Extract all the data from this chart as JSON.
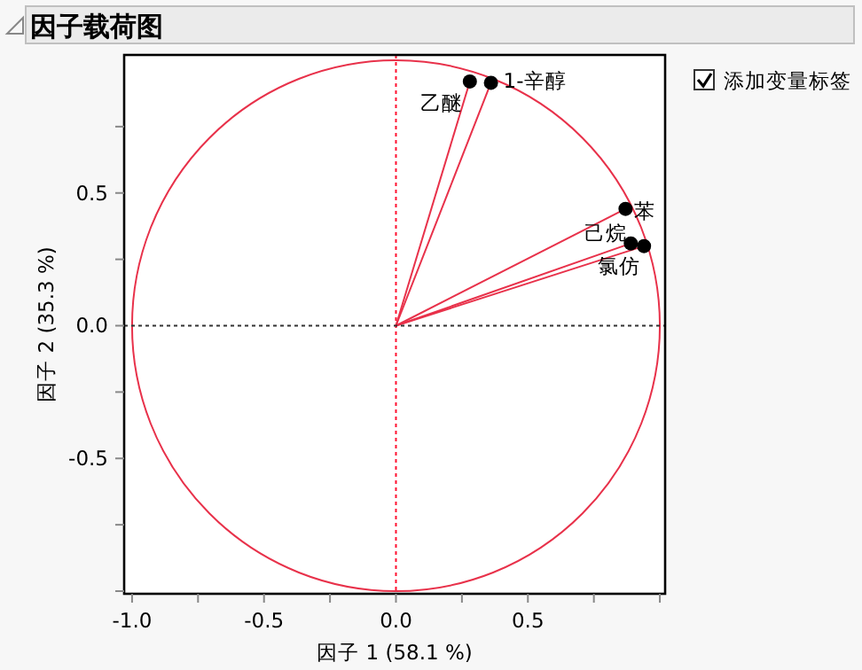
{
  "chart_data": {
    "type": "scatter",
    "title": "因子载荷图",
    "xlabel": "因子 1  (58.1 %)",
    "ylabel": "因子 2  (35.3 %)",
    "xlim": [
      -1.03,
      1.02
    ],
    "ylim": [
      -1.01,
      1.02
    ],
    "xticks": [
      {
        "value": -1,
        "label": "-1.0"
      },
      {
        "value": -0.75,
        "label": null
      },
      {
        "value": -0.5,
        "label": "-0.5"
      },
      {
        "value": -0.25,
        "label": null
      },
      {
        "value": 0,
        "label": "0.0"
      },
      {
        "value": 0.25,
        "label": null
      },
      {
        "value": 0.5,
        "label": "0.5"
      },
      {
        "value": 0.75,
        "label": null
      },
      {
        "value": 1,
        "label": null
      }
    ],
    "yticks": [
      {
        "value": -1,
        "label": null
      },
      {
        "value": -0.75,
        "label": null
      },
      {
        "value": -0.5,
        "label": "-0.5"
      },
      {
        "value": -0.25,
        "label": null
      },
      {
        "value": 0,
        "label": "0.0"
      },
      {
        "value": 0.25,
        "label": null
      },
      {
        "value": 0.5,
        "label": "0.5"
      },
      {
        "value": 0.75,
        "label": null
      }
    ],
    "grid": false,
    "series": [
      {
        "marker": "circle",
        "color": "#000000",
        "x": [
          0.28,
          0.36,
          0.87,
          0.89,
          0.94
        ],
        "values": [
          0.92,
          0.915,
          0.44,
          0.31,
          0.3
        ]
      },
      {
        "type": "line",
        "line_style": "solid",
        "color": "#e8314a",
        "x": [
          0,
          0.28
        ],
        "values": [
          0,
          0.92
        ]
      },
      {
        "type": "line",
        "line_style": "solid",
        "color": "#e8314a",
        "x": [
          0,
          0.36
        ],
        "values": [
          0,
          0.915
        ]
      },
      {
        "type": "line",
        "line_style": "solid",
        "color": "#e8314a",
        "x": [
          0,
          0.87
        ],
        "values": [
          0,
          0.44
        ]
      },
      {
        "type": "line",
        "line_style": "solid",
        "color": "#e8314a",
        "x": [
          0,
          0.89
        ],
        "values": [
          0,
          0.31
        ]
      },
      {
        "type": "line",
        "line_style": "solid",
        "color": "#e8314a",
        "x": [
          0,
          0.94
        ],
        "values": [
          0,
          0.3
        ]
      }
    ],
    "ref_lines": [
      {
        "axis": "x",
        "value": 0,
        "color": "#ff1030",
        "line_style": "dotted"
      },
      {
        "axis": "y",
        "value": 0,
        "color": "#333333",
        "line_style": "dotted"
      }
    ],
    "annotations": [
      {
        "text": "乙醚",
        "x": 0.28,
        "y": 0.92
      },
      {
        "text": "1-辛醇",
        "x": 0.36,
        "y": 0.915
      },
      {
        "text": "苯",
        "x": 0.87,
        "y": 0.44
      },
      {
        "text": "己烷",
        "x": 0.89,
        "y": 0.31
      },
      {
        "text": "氯仿",
        "x": 0.94,
        "y": 0.3
      },
      "添加变量标签"
    ]
  }
}
